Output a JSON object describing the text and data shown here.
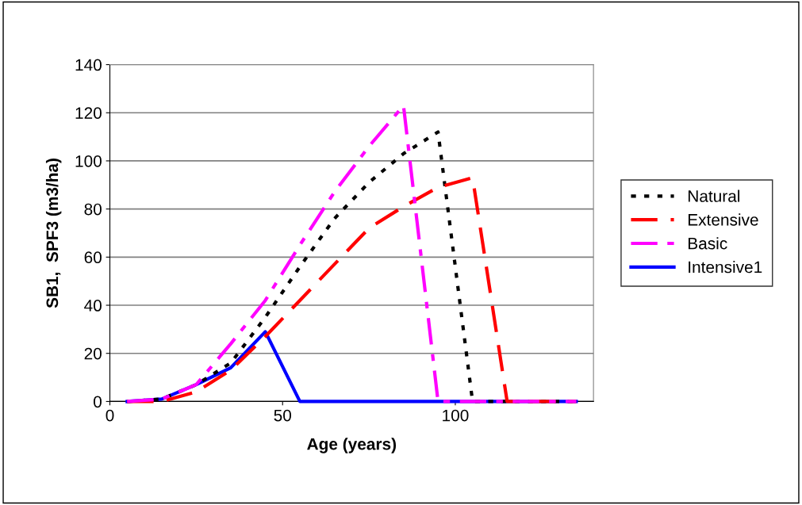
{
  "chart_data": {
    "type": "line",
    "xlabel": "Age (years)",
    "ylabel": "SB1,  SPF3 (m3/ha)",
    "x": [
      5,
      15,
      25,
      35,
      45,
      55,
      65,
      75,
      85,
      95,
      105,
      115,
      125,
      135
    ],
    "xlim": [
      0,
      140
    ],
    "xticks": [
      0,
      50,
      100
    ],
    "ylim": [
      0,
      140
    ],
    "yticks": [
      0,
      20,
      40,
      60,
      80,
      100,
      120,
      140
    ],
    "grid": "y",
    "legend": "right",
    "marker": "none",
    "series": [
      {
        "name": "Natural",
        "color": "#000000",
        "line_style": "dotted",
        "values": [
          0,
          1,
          7,
          16,
          35,
          56,
          76,
          91,
          103,
          112,
          0,
          0,
          0,
          0
        ]
      },
      {
        "name": "Extensive",
        "color": "#ff0000",
        "line_style": "dashed",
        "values": [
          0,
          0,
          4,
          13,
          27,
          42,
          57,
          72,
          81,
          89,
          93,
          0,
          0,
          0
        ]
      },
      {
        "name": "Basic",
        "color": "#ff00ff",
        "line_style": "dashdot",
        "values": [
          0,
          1,
          7,
          24,
          42,
          65,
          87,
          106,
          123,
          0,
          0,
          0,
          0,
          0
        ]
      },
      {
        "name": "Intensive1",
        "color": "#0000ff",
        "line_style": "solid",
        "values": [
          0,
          1,
          7,
          14,
          29,
          0,
          0,
          0,
          0,
          0,
          0,
          0,
          0,
          0
        ]
      }
    ]
  }
}
